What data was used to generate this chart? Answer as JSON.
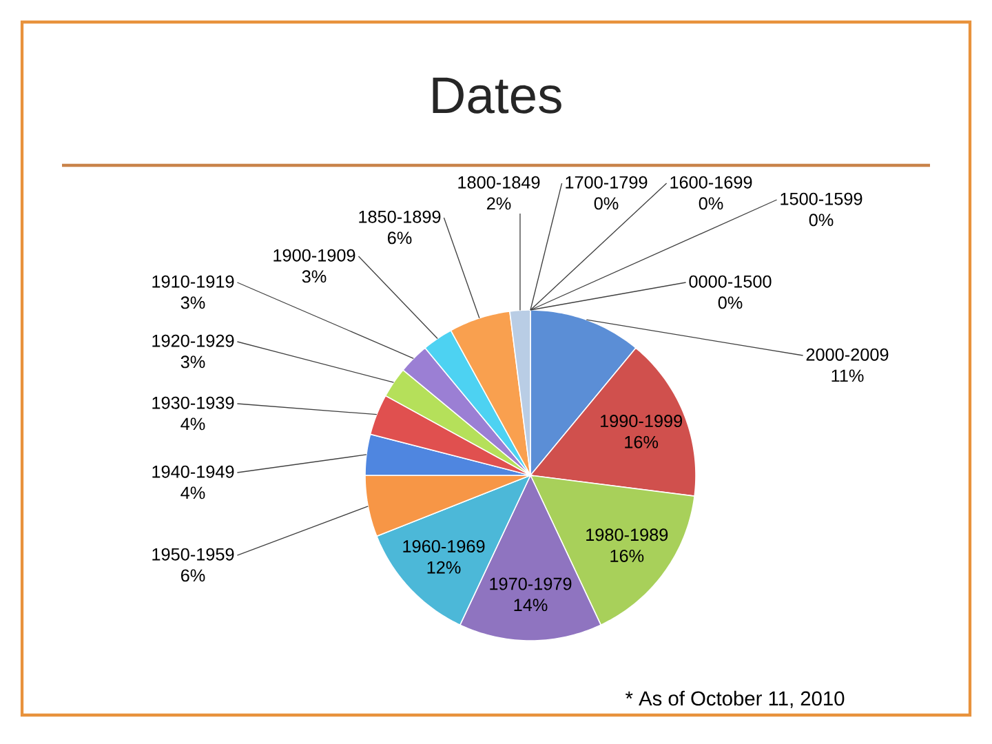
{
  "chart_data": {
    "type": "pie",
    "title": "Dates",
    "categories": [
      "2000-2009",
      "1990-1999",
      "1980-1989",
      "1970-1979",
      "1960-1969",
      "1950-1959",
      "1940-1949",
      "1930-1939",
      "1920-1929",
      "1910-1919",
      "1900-1909",
      "1850-1899",
      "1800-1849",
      "1700-1799",
      "1600-1699",
      "1500-1599",
      "0000-1500"
    ],
    "values": [
      11,
      16,
      16,
      14,
      12,
      6,
      4,
      4,
      3,
      3,
      3,
      6,
      2,
      0,
      0,
      0,
      0
    ],
    "value_labels": [
      "11%",
      "16%",
      "16%",
      "14%",
      "12%",
      "6%",
      "4%",
      "4%",
      "3%",
      "3%",
      "3%",
      "6%",
      "2%",
      "0%",
      "0%",
      "0%",
      "0%"
    ],
    "colors": [
      "#5b8ed6",
      "#d0504d",
      "#a8d05a",
      "#8f74c0",
      "#4cb8d8",
      "#f79646",
      "#4f86e0",
      "#e0504f",
      "#b5e05a",
      "#9b7fd4",
      "#4dd2f2",
      "#f9a04f",
      "#b9cde5",
      null,
      null,
      null,
      null
    ],
    "annotations": [
      "* As of October 11, 2010"
    ]
  }
}
